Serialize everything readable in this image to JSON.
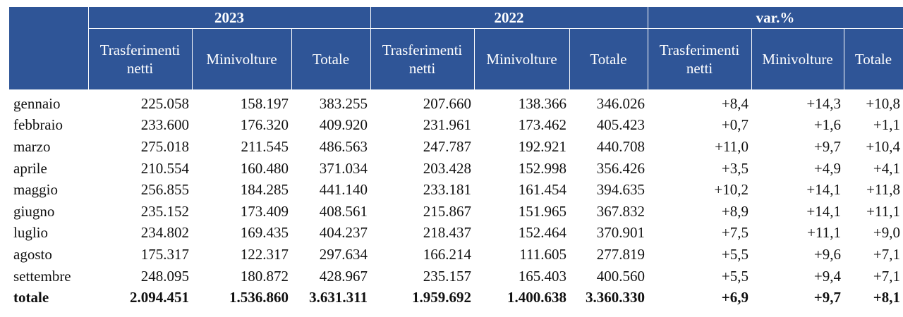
{
  "header": {
    "groups": [
      "2023",
      "2022",
      "var.%"
    ],
    "columns": [
      "Trasferimenti netti",
      "Minivolture",
      "Totale",
      "Trasferimenti netti",
      "Minivolture",
      "Totale",
      "Trasferimenti netti",
      "Minivolture",
      "Totale"
    ]
  },
  "rows": [
    {
      "month": "gennaio",
      "values": [
        "225.058",
        "158.197",
        "383.255",
        "207.660",
        "138.366",
        "346.026",
        "+8,4",
        "+14,3",
        "+10,8"
      ]
    },
    {
      "month": "febbraio",
      "values": [
        "233.600",
        "176.320",
        "409.920",
        "231.961",
        "173.462",
        "405.423",
        "+0,7",
        "+1,6",
        "+1,1"
      ]
    },
    {
      "month": "marzo",
      "values": [
        "275.018",
        "211.545",
        "486.563",
        "247.787",
        "192.921",
        "440.708",
        "+11,0",
        "+9,7",
        "+10,4"
      ]
    },
    {
      "month": "aprile",
      "values": [
        "210.554",
        "160.480",
        "371.034",
        "203.428",
        "152.998",
        "356.426",
        "+3,5",
        "+4,9",
        "+4,1"
      ]
    },
    {
      "month": "maggio",
      "values": [
        "256.855",
        "184.285",
        "441.140",
        "233.181",
        "161.454",
        "394.635",
        "+10,2",
        "+14,1",
        "+11,8"
      ]
    },
    {
      "month": "giugno",
      "values": [
        "235.152",
        "173.409",
        "408.561",
        "215.867",
        "151.965",
        "367.832",
        "+8,9",
        "+14,1",
        "+11,1"
      ]
    },
    {
      "month": "luglio",
      "values": [
        "234.802",
        "169.435",
        "404.237",
        "218.437",
        "152.464",
        "370.901",
        "+7,5",
        "+11,1",
        "+9,0"
      ]
    },
    {
      "month": "agosto",
      "values": [
        "175.317",
        "122.317",
        "297.634",
        "166.214",
        "111.605",
        "277.819",
        "+5,5",
        "+9,6",
        "+7,1"
      ]
    },
    {
      "month": "settembre",
      "values": [
        "248.095",
        "180.872",
        "428.967",
        "235.157",
        "165.403",
        "400.560",
        "+5,5",
        "+9,4",
        "+7,1"
      ]
    }
  ],
  "total": {
    "label": "totale",
    "values": [
      "2.094.451",
      "1.536.860",
      "3.631.311",
      "1.959.692",
      "1.400.638",
      "3.360.330",
      "+6,9",
      "+9,7",
      "+8,1"
    ]
  },
  "colors": {
    "header_bg": "#2f5597",
    "header_text": "#ffffff"
  }
}
